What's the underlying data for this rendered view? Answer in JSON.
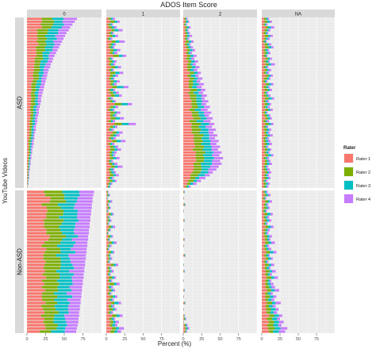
{
  "chart_data": {
    "type": "bar",
    "orientation": "horizontal",
    "stacked": true,
    "title": "ADOS Item Score",
    "xlabel": "Percent (%)",
    "ylabel": "YouTube Videos",
    "x_ticks": [
      "0",
      "25",
      "50",
      "75"
    ],
    "xlim": [
      0,
      100
    ],
    "grid": true,
    "legend": {
      "title": "Rater",
      "placement": "right"
    },
    "column_facets": [
      "0",
      "1",
      "2",
      "NA"
    ],
    "row_facets": [
      {
        "label": "ASD",
        "bar_count": 60
      },
      {
        "label": "Non-ASD",
        "bar_count": 45
      }
    ],
    "series": [
      {
        "name": "Rater 1",
        "color": "#F8766D"
      },
      {
        "name": "Rater 2",
        "color": "#7CAE00"
      },
      {
        "name": "Rater 3",
        "color": "#00BFC4"
      },
      {
        "name": "Rater 4",
        "color": "#C77CFF"
      }
    ],
    "note": "Each facet panel contains one horizontal bar per video (sorted within the ASD/0 panel by descending total). Approximate per-panel profiles of total stacked percent (sum over the four raters) read from the figure.",
    "panel_total_profiles": {
      "ASD": {
        "0": [
          67,
          64,
          61,
          58,
          56,
          53,
          51,
          49,
          47,
          45,
          43,
          41,
          39,
          37,
          35,
          34,
          32,
          31,
          29,
          28,
          27,
          26,
          25,
          24,
          23,
          22,
          21,
          20,
          19,
          19,
          18,
          17,
          16,
          16,
          15,
          14,
          14,
          13,
          12,
          12,
          11,
          10,
          10,
          9,
          9,
          8,
          7,
          7,
          6,
          6,
          5,
          5,
          4,
          4,
          3,
          3,
          3,
          2,
          2,
          1
        ],
        "1": [
          12,
          18,
          9,
          14,
          22,
          10,
          16,
          8,
          25,
          13,
          11,
          19,
          15,
          27,
          9,
          14,
          12,
          20,
          10,
          23,
          16,
          11,
          18,
          14,
          30,
          12,
          17,
          21,
          9,
          13,
          35,
          16,
          11,
          19,
          14,
          24,
          12,
          40,
          15,
          10,
          22,
          18,
          13,
          26,
          11,
          16,
          20,
          14,
          12,
          18,
          9,
          15,
          22,
          11,
          13,
          17,
          10,
          14,
          8,
          6
        ],
        "2": [
          6,
          8,
          5,
          10,
          7,
          9,
          12,
          8,
          14,
          10,
          13,
          16,
          12,
          18,
          15,
          20,
          17,
          22,
          19,
          24,
          21,
          26,
          23,
          28,
          25,
          30,
          27,
          32,
          29,
          34,
          31,
          36,
          33,
          38,
          35,
          40,
          37,
          42,
          39,
          44,
          41,
          46,
          43,
          48,
          45,
          50,
          47,
          52,
          49,
          54,
          50,
          52,
          48,
          45,
          40,
          36,
          30,
          24,
          18,
          10
        ],
        "NA": [
          10,
          14,
          8,
          17,
          12,
          9,
          15,
          11,
          7,
          13,
          16,
          10,
          12,
          8,
          14,
          11,
          18,
          9,
          13,
          10,
          15,
          12,
          8,
          16,
          11,
          14,
          9,
          12,
          17,
          10,
          13,
          11,
          15,
          8,
          12,
          14,
          10,
          16,
          9,
          13,
          11,
          15,
          10,
          12,
          14,
          9,
          13,
          11,
          16,
          10,
          12,
          14,
          9,
          11,
          13,
          10,
          12,
          8,
          11,
          9
        ]
      },
      "Non-ASD": {
        "0": [
          90,
          89,
          88,
          88,
          87,
          87,
          86,
          86,
          85,
          85,
          84,
          84,
          83,
          83,
          82,
          82,
          81,
          81,
          80,
          80,
          79,
          79,
          78,
          78,
          77,
          77,
          76,
          76,
          75,
          75,
          74,
          74,
          73,
          73,
          72,
          72,
          71,
          71,
          70,
          70,
          69,
          69,
          68,
          67,
          66
        ],
        "1": [
          3,
          5,
          2,
          8,
          4,
          6,
          3,
          10,
          5,
          7,
          4,
          12,
          6,
          3,
          9,
          5,
          14,
          7,
          4,
          11,
          6,
          8,
          5,
          16,
          7,
          10,
          6,
          13,
          8,
          18,
          9,
          12,
          7,
          15,
          10,
          20,
          11,
          14,
          9,
          22,
          12,
          17,
          15,
          24,
          20
        ],
        "2": [
          2,
          0,
          1,
          0,
          3,
          0,
          1,
          0,
          0,
          2,
          0,
          0,
          1,
          0,
          0,
          2,
          0,
          1,
          0,
          0,
          3,
          0,
          0,
          1,
          0,
          2,
          0,
          0,
          1,
          0,
          0,
          2,
          0,
          1,
          0,
          3,
          0,
          1,
          0,
          2,
          4,
          1,
          6,
          8,
          5
        ],
        "NA": [
          8,
          12,
          6,
          14,
          9,
          11,
          7,
          15,
          10,
          13,
          8,
          16,
          11,
          9,
          14,
          12,
          18,
          10,
          13,
          20,
          11,
          15,
          9,
          17,
          12,
          19,
          14,
          22,
          13,
          16,
          18,
          24,
          15,
          20,
          17,
          26,
          19,
          23,
          21,
          28,
          25,
          30,
          27,
          35,
          32
        ]
      }
    }
  }
}
